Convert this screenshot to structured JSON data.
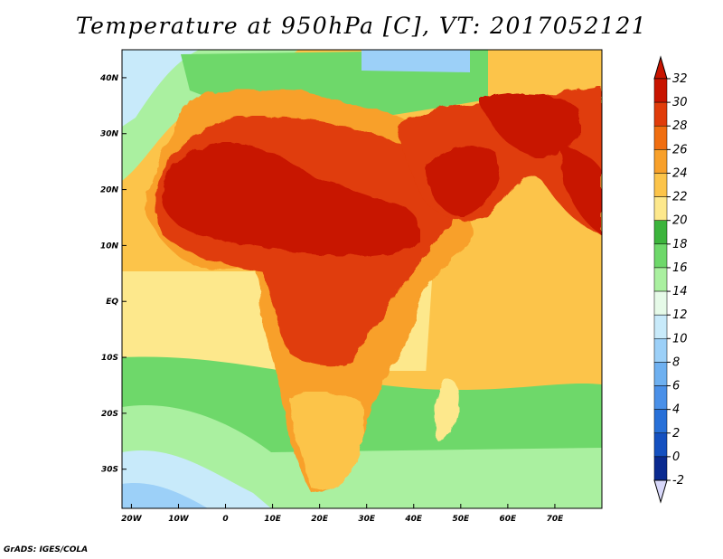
{
  "title": "Temperature at 950hPa [C], VT: 2017052121",
  "credit": "GrADS: IGES/COLA",
  "map": {
    "lon_range": [
      -22,
      80
    ],
    "lat_range": [
      -37,
      45
    ],
    "lat_ticks": [
      {
        "value": 40,
        "label": "40N"
      },
      {
        "value": 30,
        "label": "30N"
      },
      {
        "value": 20,
        "label": "20N"
      },
      {
        "value": 10,
        "label": "10N"
      },
      {
        "value": 0,
        "label": "EQ"
      },
      {
        "value": -10,
        "label": "10S"
      },
      {
        "value": -20,
        "label": "20S"
      },
      {
        "value": -30,
        "label": "30S"
      }
    ],
    "lon_ticks": [
      {
        "value": -20,
        "label": "20W"
      },
      {
        "value": -10,
        "label": "10W"
      },
      {
        "value": 0,
        "label": "0"
      },
      {
        "value": 10,
        "label": "10E"
      },
      {
        "value": 20,
        "label": "20E"
      },
      {
        "value": 30,
        "label": "30E"
      },
      {
        "value": 40,
        "label": "40E"
      },
      {
        "value": 50,
        "label": "50E"
      },
      {
        "value": 60,
        "label": "60E"
      },
      {
        "value": 70,
        "label": "70E"
      }
    ]
  },
  "colorbar": {
    "labels": [
      "32",
      "30",
      "28",
      "26",
      "24",
      "22",
      "20",
      "18",
      "16",
      "14",
      "12",
      "10",
      "8",
      "6",
      "4",
      "2",
      "0",
      "-2"
    ],
    "colors": [
      "#c81400",
      "#e03c0a",
      "#f06e10",
      "#f8a02a",
      "#fcc44a",
      "#fde88c",
      "#3cb43c",
      "#6ed86a",
      "#aaf0a0",
      "#e6fae8",
      "#c8eafa",
      "#9cd0f8",
      "#6eb0f0",
      "#4a90e8",
      "#2870d8",
      "#1450c0",
      "#0a2a90"
    ],
    "top_arrow_color": "#c81400",
    "bottom_arrow_color": "#d8d8fa"
  },
  "field_colors": {
    "ocean_cool": "#aaf0a0",
    "ocean_green": "#6ed86a",
    "ocean_warm": "#fde88c",
    "ocean_warmer": "#fcc44a",
    "land_hot": "#e03c0a",
    "land_hottest": "#c81400",
    "land_warm": "#f8a02a",
    "sea_cold": "#9cd0f8",
    "sea_teal": "#c8eafa",
    "coast_line": "#000000"
  }
}
